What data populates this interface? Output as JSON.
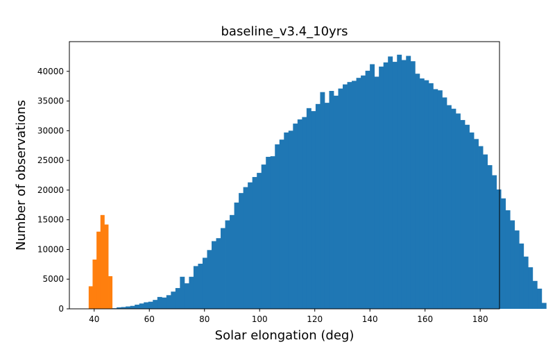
{
  "chart_data": {
    "type": "bar",
    "title": "baseline_v3.4_10yrs",
    "xlabel": "Solar elongation (deg)",
    "ylabel": "Number of observations",
    "xlim": [
      31,
      187
    ],
    "ylim": [
      0,
      45000
    ],
    "xticks": [
      40,
      60,
      80,
      100,
      120,
      140,
      160,
      180
    ],
    "yticks": [
      0,
      5000,
      10000,
      15000,
      20000,
      25000,
      30000,
      35000,
      40000
    ],
    "grid": false,
    "legend": "none",
    "series": [
      {
        "color": "#ff7f0e",
        "x_start": 38,
        "bin_width": 1.42,
        "values": [
          3800,
          8300,
          13000,
          15800,
          14200,
          5500
        ]
      },
      {
        "color": "#1f77b4",
        "x_start": 46.5,
        "bin_width": 1.64,
        "values": [
          100,
          250,
          300,
          400,
          500,
          700,
          900,
          1100,
          1200,
          1500,
          2000,
          1900,
          2300,
          2900,
          3500,
          5400,
          4300,
          5400,
          7200,
          7600,
          8600,
          9900,
          11400,
          11900,
          13600,
          14900,
          15800,
          17900,
          19500,
          20500,
          21300,
          22200,
          22900,
          24300,
          25600,
          25700,
          27700,
          28500,
          29700,
          30000,
          31200,
          31900,
          32300,
          33800,
          33300,
          34500,
          36500,
          34700,
          36700,
          35900,
          37100,
          37800,
          38200,
          38400,
          38900,
          39300,
          40100,
          41200,
          39100,
          40800,
          41500,
          42500,
          41600,
          42800,
          41900,
          42600,
          41700,
          39600,
          38800,
          38500,
          38000,
          37000,
          36800,
          35600,
          34300,
          33700,
          32900,
          31800,
          31000,
          29700,
          28600,
          27400,
          26000,
          24200,
          22500,
          20100,
          18600,
          16600,
          14900,
          13200,
          11000,
          8800,
          7000,
          4700,
          3400,
          1000
        ]
      }
    ]
  }
}
